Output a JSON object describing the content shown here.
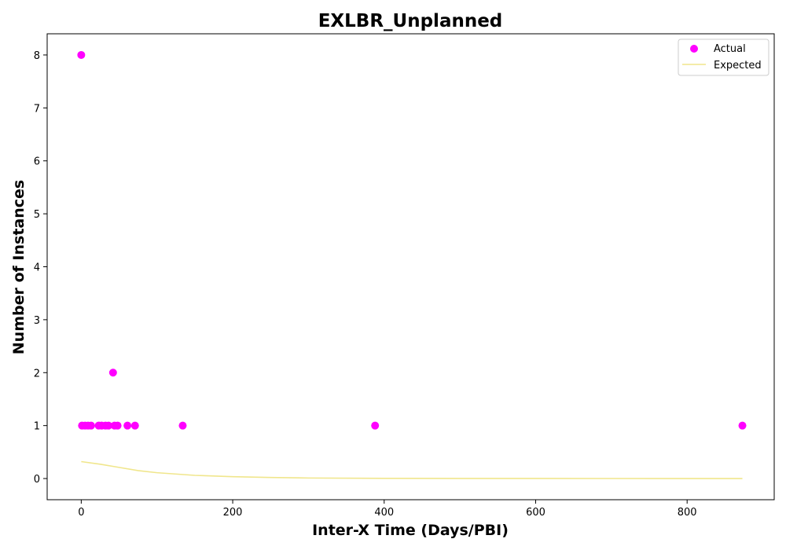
{
  "chart_data": {
    "type": "scatter",
    "title": "EXLBR_Unplanned",
    "xlabel": "Inter-X Time (Days/PBI)",
    "ylabel": "Number of Instances",
    "xlim": [
      -45,
      915
    ],
    "ylim": [
      -0.4,
      8.4
    ],
    "xticks": [
      0,
      200,
      400,
      600,
      800
    ],
    "yticks": [
      0,
      1,
      2,
      3,
      4,
      5,
      6,
      7,
      8
    ],
    "grid": false,
    "legend_position": "top-right",
    "series": [
      {
        "name": "Actual",
        "kind": "scatter",
        "color": "#ff00ff",
        "points": [
          {
            "x": 0,
            "y": 8
          },
          {
            "x": 1,
            "y": 1
          },
          {
            "x": 5,
            "y": 1
          },
          {
            "x": 9,
            "y": 1
          },
          {
            "x": 13,
            "y": 1
          },
          {
            "x": 23,
            "y": 1
          },
          {
            "x": 27,
            "y": 1
          },
          {
            "x": 32,
            "y": 1
          },
          {
            "x": 36,
            "y": 1
          },
          {
            "x": 42,
            "y": 2
          },
          {
            "x": 44,
            "y": 1
          },
          {
            "x": 48,
            "y": 1
          },
          {
            "x": 61,
            "y": 1
          },
          {
            "x": 71,
            "y": 1
          },
          {
            "x": 134,
            "y": 1
          },
          {
            "x": 388,
            "y": 1
          },
          {
            "x": 873,
            "y": 1
          }
        ]
      },
      {
        "name": "Expected",
        "kind": "line",
        "color": "#f0e68c",
        "points": [
          {
            "x": 0,
            "y": 0.32
          },
          {
            "x": 25,
            "y": 0.27
          },
          {
            "x": 50,
            "y": 0.21
          },
          {
            "x": 75,
            "y": 0.15
          },
          {
            "x": 100,
            "y": 0.11
          },
          {
            "x": 150,
            "y": 0.06
          },
          {
            "x": 200,
            "y": 0.035
          },
          {
            "x": 250,
            "y": 0.02
          },
          {
            "x": 300,
            "y": 0.01
          },
          {
            "x": 400,
            "y": 0.004
          },
          {
            "x": 500,
            "y": 0.002
          },
          {
            "x": 600,
            "y": 0.001
          },
          {
            "x": 700,
            "y": 0.0005
          },
          {
            "x": 800,
            "y": 0.0002
          },
          {
            "x": 873,
            "y": 0.0001
          }
        ]
      }
    ]
  }
}
